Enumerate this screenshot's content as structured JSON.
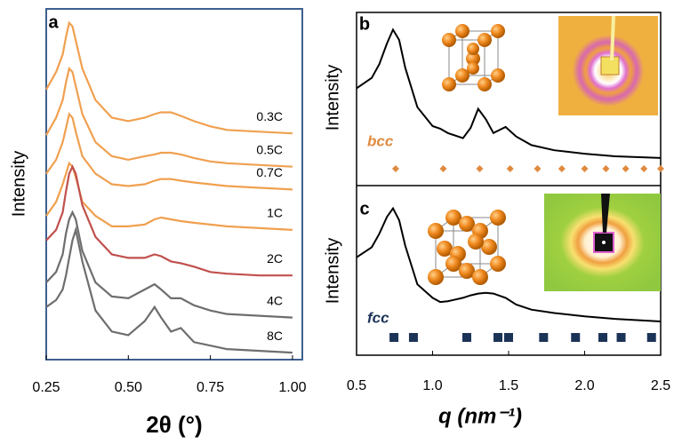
{
  "chart_data": [
    {
      "type": "line",
      "title": "a",
      "ylabel": "Intensity",
      "xlabel": "2θ (°)",
      "xlim": [
        0.25,
        1.03
      ],
      "ylim": [
        0,
        100
      ],
      "xticks": [
        {
          "value": 0.25,
          "label": "0.25"
        },
        {
          "value": 0.5,
          "label": "0.50"
        },
        {
          "value": 0.75,
          "label": "0.75"
        },
        {
          "value": 1.0,
          "label": "1.00"
        }
      ],
      "x": [
        0.25,
        0.28,
        0.3,
        0.31,
        0.32,
        0.33,
        0.34,
        0.36,
        0.4,
        0.45,
        0.5,
        0.55,
        0.58,
        0.6,
        0.63,
        0.66,
        0.7,
        0.75,
        0.8,
        0.9,
        1.0
      ],
      "series": [
        {
          "name": "0.3C",
          "color": "#f0a050",
          "values": [
            77,
            82,
            87,
            92,
            96,
            95,
            91,
            83,
            74,
            69,
            68,
            69,
            70,
            70.5,
            70.5,
            69.5,
            68,
            66.5,
            65.5,
            65,
            64.5
          ]
        },
        {
          "name": "0.5C",
          "color": "#f0a050",
          "values": [
            64,
            69,
            74,
            79,
            83,
            82,
            78,
            70,
            62,
            58,
            57,
            58,
            58.5,
            59,
            59,
            58.5,
            57.5,
            56.5,
            56,
            55.5,
            55
          ]
        },
        {
          "name": "0.7C",
          "color": "#f0a050",
          "values": [
            53,
            57,
            62,
            66,
            70,
            69,
            65,
            58,
            53,
            50,
            49.5,
            50,
            51,
            51.5,
            51.5,
            51,
            50.5,
            50,
            49.5,
            49,
            48.5
          ]
        },
        {
          "name": "1C",
          "color": "#f0a050",
          "values": [
            41,
            45,
            50,
            53,
            56,
            55,
            52,
            45,
            41,
            38,
            38,
            38.5,
            40,
            40.5,
            40,
            39.5,
            39,
            38.5,
            38,
            37.5,
            37
          ]
        },
        {
          "name": "2C",
          "color": "#c0504d",
          "values": [
            34,
            37,
            42,
            48,
            53,
            55,
            53,
            44,
            35,
            30,
            29,
            29,
            30,
            29.5,
            28,
            27.5,
            26.5,
            25,
            24.5,
            24,
            24
          ]
        },
        {
          "name": "4C",
          "color": "#6e6e6e",
          "values": [
            22,
            25,
            30,
            36,
            40,
            42,
            40,
            31,
            22,
            18,
            17.5,
            20,
            21.5,
            20,
            17.5,
            17.5,
            15.5,
            14,
            13,
            12.5,
            12
          ]
        },
        {
          "name": "8C",
          "color": "#6e6e6e",
          "values": [
            15,
            17,
            20,
            24,
            29,
            34,
            37,
            28,
            14,
            8,
            7,
            11,
            15,
            12,
            8,
            9,
            5,
            4,
            3,
            2.5,
            2
          ]
        }
      ]
    },
    {
      "type": "line",
      "title": "b",
      "ylabel": "Intensity",
      "lattice": "bcc",
      "marker_color": "#e08a40",
      "xlim": [
        0.5,
        2.5
      ],
      "ylim": [
        0,
        100
      ],
      "x": [
        0.5,
        0.6,
        0.65,
        0.7,
        0.74,
        0.78,
        0.82,
        0.9,
        1.0,
        1.05,
        1.1,
        1.2,
        1.25,
        1.3,
        1.35,
        1.4,
        1.48,
        1.55,
        1.65,
        1.8,
        2.0,
        2.2,
        2.5
      ],
      "values": [
        56,
        62,
        70,
        82,
        90,
        84,
        68,
        45,
        34,
        32.5,
        30,
        27,
        33,
        44,
        38,
        30,
        33.5,
        28,
        23,
        20,
        18,
        16.5,
        15.5
      ],
      "peaks": [
        0.757,
        1.07,
        1.31,
        1.51,
        1.69,
        1.85,
        2.0,
        2.14,
        2.27,
        2.39,
        2.5
      ]
    },
    {
      "type": "line",
      "title": "c",
      "ylabel": "Intensity",
      "lattice": "fcc",
      "marker_color": "#1c3358",
      "xlabel": "q (nm⁻¹)",
      "xlim": [
        0.5,
        2.5
      ],
      "ylim": [
        0,
        100
      ],
      "xticks": [
        0.5,
        {
          "value": 1.0,
          "label": "1.0"
        },
        1.5,
        {
          "value": 2.0,
          "label": "2.0"
        },
        2.5
      ],
      "x": [
        0.5,
        0.6,
        0.65,
        0.7,
        0.74,
        0.78,
        0.82,
        0.9,
        1.0,
        1.05,
        1.1,
        1.2,
        1.25,
        1.3,
        1.35,
        1.4,
        1.48,
        1.55,
        1.65,
        1.8,
        2.0,
        2.2,
        2.5
      ],
      "values": [
        58,
        64,
        72,
        82,
        87,
        80,
        65,
        42,
        34,
        31.5,
        32,
        34,
        35.5,
        36.5,
        37,
        36.5,
        34,
        30,
        27,
        25,
        23,
        21.5,
        20
      ],
      "peaks": [
        0.746,
        0.874,
        1.225,
        1.43,
        1.5,
        1.73,
        1.94,
        2.12,
        2.24,
        2.44
      ]
    }
  ]
}
